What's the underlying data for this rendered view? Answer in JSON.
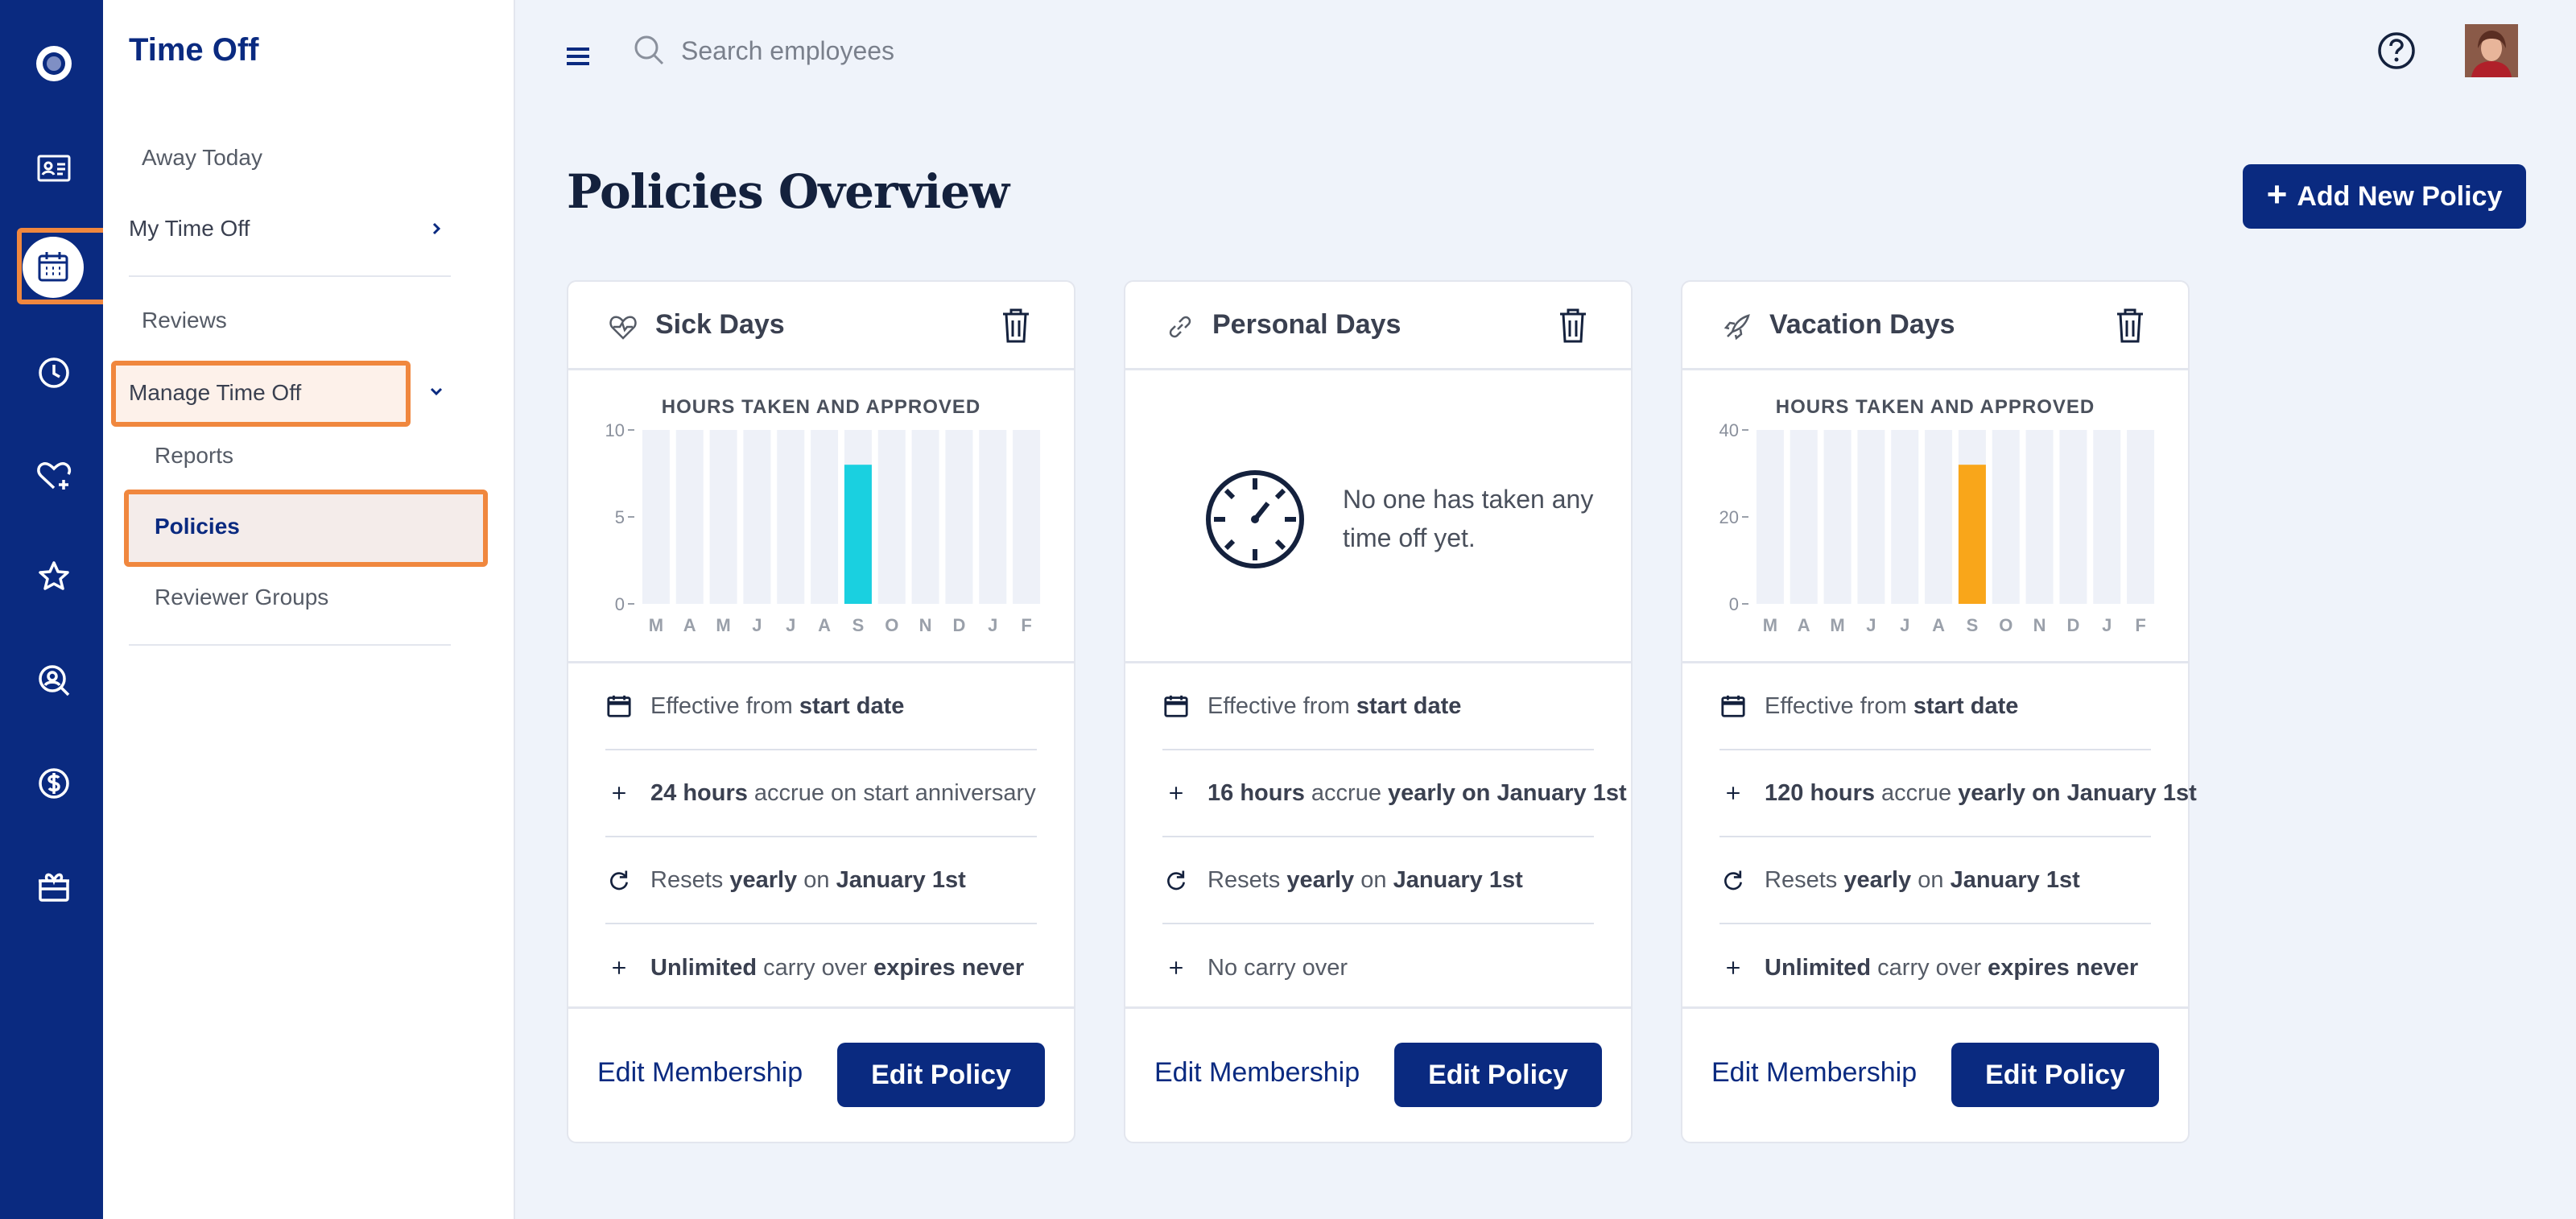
{
  "app": {
    "section_title": "Time Off"
  },
  "rail": {
    "items": [
      {
        "icon": "logo-icon"
      },
      {
        "icon": "id-card-icon"
      },
      {
        "icon": "calendar-icon",
        "active": true
      },
      {
        "icon": "clock-icon"
      },
      {
        "icon": "heart-plus-icon"
      },
      {
        "icon": "star-icon"
      },
      {
        "icon": "person-search-icon"
      },
      {
        "icon": "dollar-icon"
      },
      {
        "icon": "gift-icon"
      }
    ]
  },
  "sidebar": {
    "away_today": "Away Today",
    "my_time_off": "My Time Off",
    "reviews": "Reviews",
    "manage_time_off": "Manage Time Off",
    "reports": "Reports",
    "policies": "Policies",
    "reviewer_groups": "Reviewer Groups"
  },
  "topbar": {
    "search_placeholder": "Search employees"
  },
  "page": {
    "title": "Policies Overview",
    "add_button": "Add New Policy"
  },
  "colors": {
    "primary": "#0a2a80",
    "highlight": "#f0873e",
    "sick_bar": "#1ad0e0",
    "vacation_bar": "#f9a61a"
  },
  "cards": [
    {
      "title": "Sick Days",
      "icon": "heart-pulse-icon",
      "chart_title": "HOURS TAKEN AND APPROVED",
      "rows": [
        {
          "icon": "calendar-icon",
          "parts": [
            "Effective from ",
            "start date"
          ]
        },
        {
          "icon": "plus-icon",
          "parts": [
            "24 hours",
            " accrue on start anniversary"
          ]
        },
        {
          "icon": "refresh-icon",
          "parts": [
            "Resets ",
            "yearly",
            " on ",
            "January 1st"
          ]
        },
        {
          "icon": "plus-icon",
          "parts": [
            "Unlimited",
            " carry over ",
            "expires never"
          ]
        }
      ],
      "edit_membership": "Edit Membership",
      "edit_policy": "Edit Policy"
    },
    {
      "title": "Personal Days",
      "icon": "link-icon",
      "empty_text": "No one has taken any time off yet.",
      "rows": [
        {
          "icon": "calendar-icon",
          "parts": [
            "Effective from ",
            "start date"
          ]
        },
        {
          "icon": "plus-icon",
          "parts": [
            "16 hours",
            " accrue ",
            "yearly on January 1st"
          ]
        },
        {
          "icon": "refresh-icon",
          "parts": [
            "Resets ",
            "yearly",
            " on ",
            "January 1st"
          ]
        },
        {
          "icon": "plus-icon",
          "parts": [
            "No carry over"
          ]
        }
      ],
      "edit_membership": "Edit Membership",
      "edit_policy": "Edit Policy"
    },
    {
      "title": "Vacation Days",
      "icon": "rocket-icon",
      "chart_title": "HOURS TAKEN AND APPROVED",
      "rows": [
        {
          "icon": "calendar-icon",
          "parts": [
            "Effective from ",
            "start date"
          ]
        },
        {
          "icon": "plus-icon",
          "parts": [
            "120 hours",
            " accrue ",
            "yearly on January 1st"
          ]
        },
        {
          "icon": "refresh-icon",
          "parts": [
            "Resets ",
            "yearly",
            " on ",
            "January 1st"
          ]
        },
        {
          "icon": "plus-icon",
          "parts": [
            "Unlimited",
            " carry over ",
            "expires never"
          ]
        }
      ],
      "edit_membership": "Edit Membership",
      "edit_policy": "Edit Policy"
    }
  ],
  "chart_data": [
    {
      "type": "bar",
      "title": "HOURS TAKEN AND APPROVED",
      "categories": [
        "M",
        "A",
        "M",
        "J",
        "J",
        "A",
        "S",
        "O",
        "N",
        "D",
        "J",
        "F"
      ],
      "values": [
        0,
        0,
        0,
        0,
        0,
        0,
        8,
        0,
        0,
        0,
        0,
        0
      ],
      "ylim": [
        0,
        10
      ],
      "yticks": [
        "10",
        "5",
        "0"
      ],
      "bar_color": "#1ad0e0"
    },
    {
      "type": "bar",
      "title": "HOURS TAKEN AND APPROVED",
      "categories": [
        "M",
        "A",
        "M",
        "J",
        "J",
        "A",
        "S",
        "O",
        "N",
        "D",
        "J",
        "F"
      ],
      "values": [
        0,
        0,
        0,
        0,
        0,
        0,
        32,
        0,
        0,
        0,
        0,
        0
      ],
      "ylim": [
        0,
        40
      ],
      "yticks": [
        "40",
        "20",
        "0"
      ],
      "bar_color": "#f9a61a"
    }
  ]
}
